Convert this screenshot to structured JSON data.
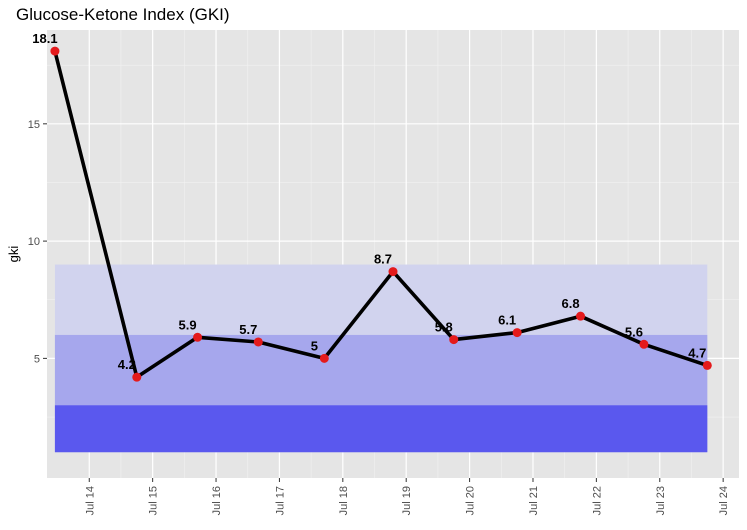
{
  "chart_data": {
    "type": "line",
    "title": "Glucose-Ketone Index (GKI)",
    "xlabel": "",
    "ylabel": "gki",
    "x_tick_labels": [
      "Jul 14",
      "Jul 15",
      "Jul 16",
      "Jul 17",
      "Jul 18",
      "Jul 19",
      "Jul 20",
      "Jul 21",
      "Jul 22",
      "Jul 23",
      "Jul 24"
    ],
    "x_tick_days": [
      14,
      15,
      16,
      17,
      18,
      19,
      20,
      21,
      22,
      23,
      24
    ],
    "y_ticks": [
      5,
      10,
      15
    ],
    "y_tick_labels": [
      "5",
      "10",
      "15"
    ],
    "xlim": [
      "2023-07-13 08:00",
      "2023-07-24 06:00"
    ],
    "ylim": [
      -0.1,
      19.0
    ],
    "grid": true,
    "series": [
      {
        "x": [
          "2023-07-13 11:00",
          "2023-07-14 18:00",
          "2023-07-15 17:00",
          "2023-07-16 16:00",
          "2023-07-17 17:00",
          "2023-07-18 19:00",
          "2023-07-19 18:00",
          "2023-07-20 18:00",
          "2023-07-21 18:00",
          "2023-07-22 18:00",
          "2023-07-23 18:00"
        ],
        "values": [
          18.1,
          4.2,
          5.9,
          5.7,
          5.0,
          8.7,
          5.8,
          6.1,
          6.8,
          5.6,
          4.7
        ],
        "labels": [
          "18.1",
          "4.2",
          "5.9",
          "5.7",
          "5",
          "8.7",
          "5.8",
          "6.1",
          "6.8",
          "5.6",
          "4.7"
        ]
      }
    ],
    "bands": [
      {
        "y_from": 1,
        "y_to": 9,
        "color": "#d1d3ee"
      },
      {
        "y_from": 1,
        "y_to": 6,
        "color": "#a6a7ed"
      },
      {
        "y_from": 1,
        "y_to": 3,
        "color": "#5a58ee"
      }
    ],
    "colors": {
      "panel": "#e5e5e5",
      "line": "#000000",
      "point": "#e41a1c"
    }
  }
}
